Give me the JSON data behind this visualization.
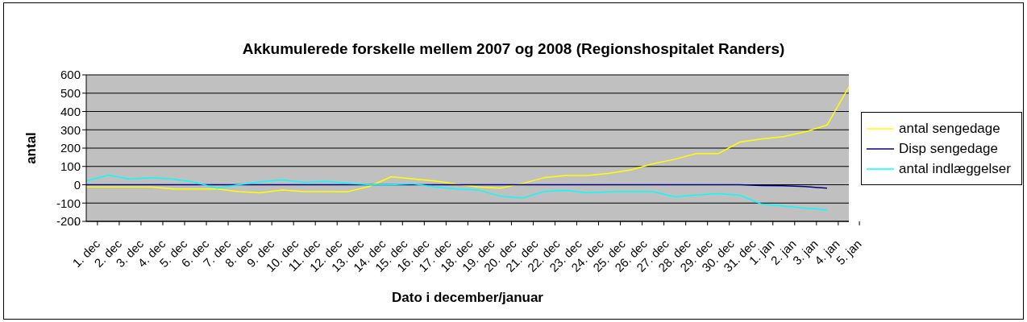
{
  "chart_data": {
    "type": "line",
    "title": "Akkumulerede forskelle mellem 2007 og 2008 (Regionshospitalet Randers)",
    "xlabel": "Dato i december/januar",
    "ylabel": "antal",
    "categories": [
      "1. dec",
      "2. dec",
      "3. dec",
      "4. dec",
      "5. dec",
      "6. dec",
      "7. dec",
      "8. dec",
      "9. dec",
      "10. dec",
      "11. dec",
      "12. dec",
      "13. dec",
      "14. dec",
      "15. dec",
      "16. dec",
      "17. dec",
      "18. dec",
      "19. dec",
      "20. dec",
      "21. dec",
      "22. dec",
      "23. dec",
      "24. dec",
      "25. dec",
      "26. dec",
      "27. dec",
      "28. dec",
      "29. dec",
      "30. dec",
      "31. dec",
      "1. jan",
      "2. jan",
      "3. jan",
      "4. jan",
      "5. jan"
    ],
    "series": [
      {
        "name": "antal sengedage",
        "color": "#ffff00",
        "values": [
          -12,
          -12,
          -12,
          -12,
          -23,
          -23,
          -23,
          -37,
          -44,
          -29,
          -37,
          -37,
          -38,
          -9,
          44,
          32,
          21,
          3,
          -12,
          -19,
          6,
          38,
          51,
          51,
          63,
          81,
          114,
          139,
          170,
          170,
          233,
          251,
          263,
          289,
          326,
          533
        ]
      },
      {
        "name": "Disp sengedage",
        "color": "#000080",
        "values": [
          0,
          0,
          0,
          0,
          0,
          0,
          0,
          0,
          0,
          0,
          0,
          0,
          0,
          0,
          0,
          0,
          0,
          0,
          0,
          0,
          0,
          0,
          0,
          0,
          0,
          0,
          0,
          0,
          0,
          0,
          0,
          -4,
          -6,
          -10,
          -19,
          null
        ]
      },
      {
        "name": "antal indlæggelser",
        "color": "#00ffff",
        "values": [
          20,
          53,
          31,
          38,
          31,
          13,
          -19,
          0,
          16,
          26,
          13,
          19,
          9,
          0,
          0,
          6,
          -12,
          -23,
          -29,
          -62,
          -73,
          -37,
          -31,
          -44,
          -38,
          -37,
          -37,
          -66,
          -56,
          -48,
          -57,
          -106,
          -116,
          -128,
          -137,
          null
        ]
      }
    ],
    "ylim": [
      -200,
      600
    ],
    "yticks": [
      -200,
      -100,
      0,
      100,
      200,
      300,
      400,
      500,
      600
    ],
    "grid": "y",
    "legend": "right",
    "marker": "none",
    "line_style": "solid"
  }
}
